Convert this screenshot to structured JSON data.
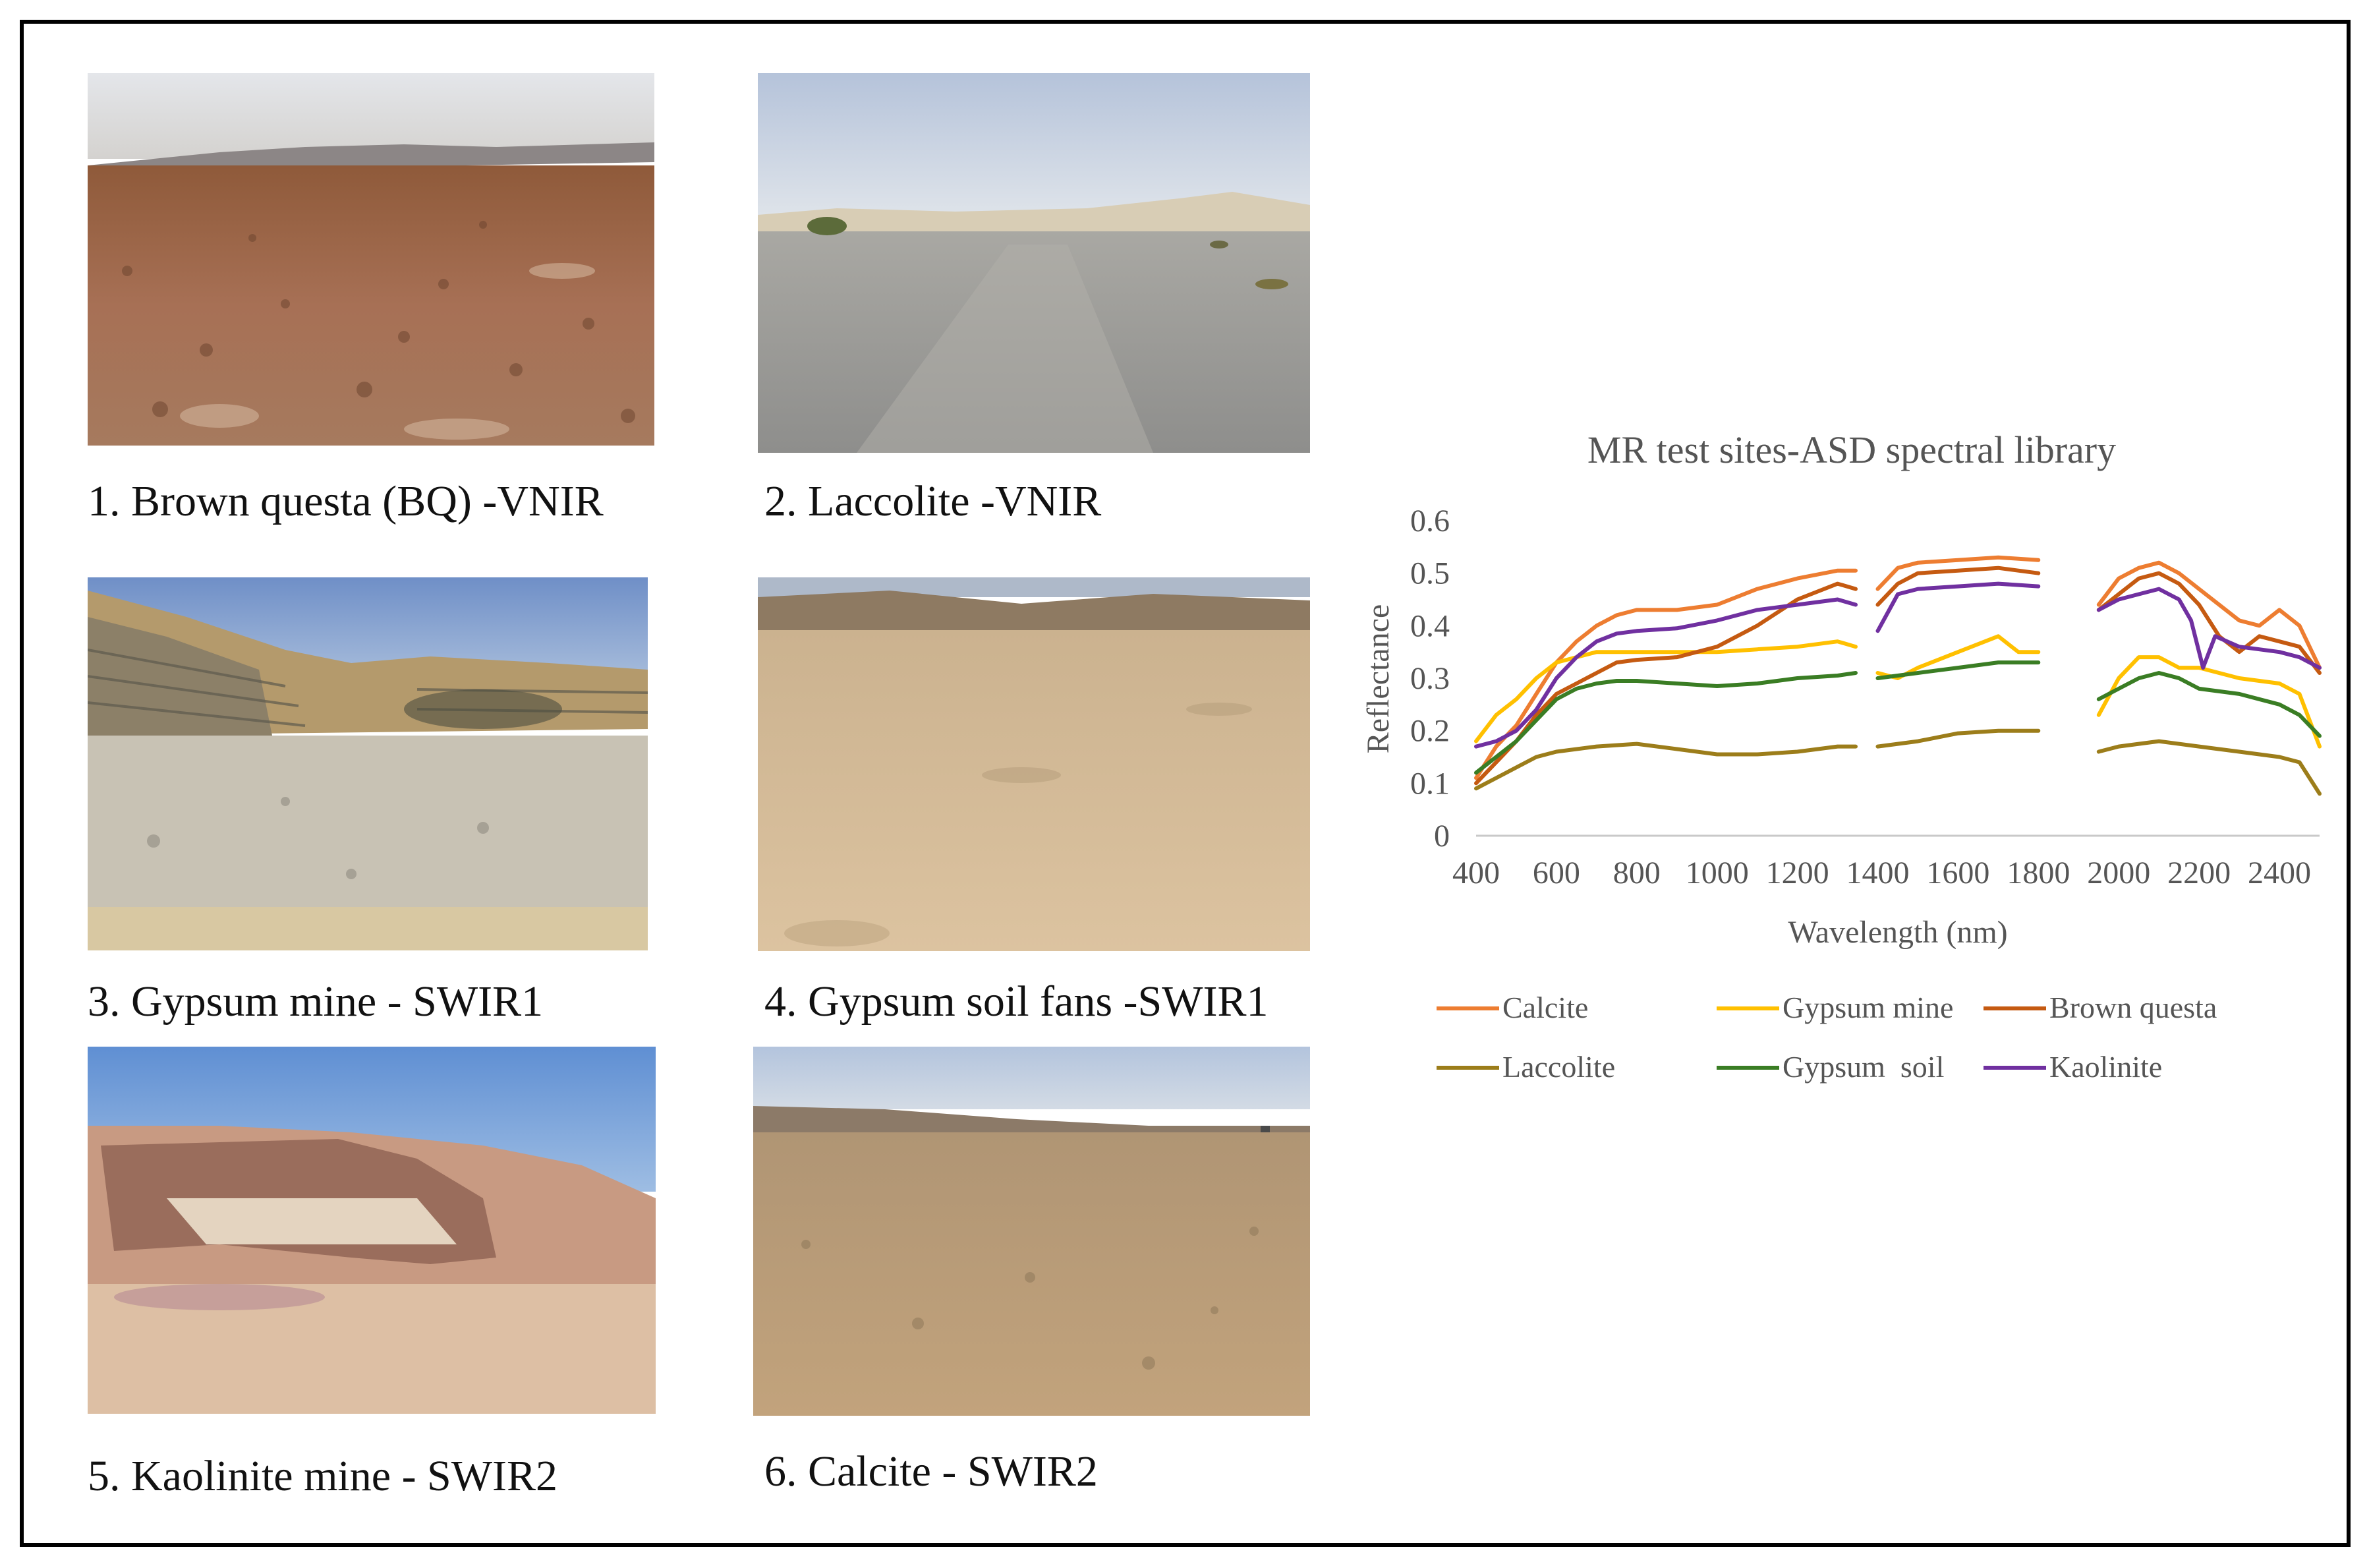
{
  "photos": [
    {
      "caption": "1. Brown questa (BQ) -VNIR"
    },
    {
      "caption": "2. Laccolite -VNIR"
    },
    {
      "caption": "3. Gypsum mine - SWIR1"
    },
    {
      "caption": "4. Gypsum soil fans -SWIR1"
    },
    {
      "caption": "5. Kaolinite mine - SWIR2"
    },
    {
      "caption": "6. Calcite - SWIR2"
    }
  ],
  "chart_data": {
    "type": "line",
    "title": "MR test sites-ASD spectral library",
    "xlabel": "Wavelength (nm)",
    "ylabel": "Reflectance",
    "xlim": [
      400,
      2500
    ],
    "ylim": [
      0,
      0.6
    ],
    "x_ticks": [
      "400",
      "600",
      "800",
      "1000",
      "1200",
      "1400",
      "1600",
      "1800",
      "2000",
      "2200",
      "2400"
    ],
    "y_ticks": [
      "0",
      "0.1",
      "0.2",
      "0.3",
      "0.4",
      "0.5",
      "0.6"
    ],
    "grid": false,
    "legend_position": "bottom",
    "gaps_nm": [
      [
        1350,
        1400
      ],
      [
        1810,
        1950
      ]
    ],
    "series": [
      {
        "name": "Calcite",
        "color": "#ED7D31",
        "points": [
          [
            400,
            0.11
          ],
          [
            450,
            0.17
          ],
          [
            500,
            0.21
          ],
          [
            550,
            0.27
          ],
          [
            600,
            0.33
          ],
          [
            650,
            0.37
          ],
          [
            700,
            0.4
          ],
          [
            750,
            0.42
          ],
          [
            800,
            0.43
          ],
          [
            900,
            0.43
          ],
          [
            1000,
            0.44
          ],
          [
            1100,
            0.47
          ],
          [
            1200,
            0.49
          ],
          [
            1300,
            0.505
          ],
          [
            1345,
            0.505
          ],
          [
            1400,
            0.47
          ],
          [
            1450,
            0.51
          ],
          [
            1500,
            0.52
          ],
          [
            1600,
            0.525
          ],
          [
            1700,
            0.53
          ],
          [
            1800,
            0.525
          ],
          [
            1950,
            0.44
          ],
          [
            2000,
            0.49
          ],
          [
            2050,
            0.51
          ],
          [
            2100,
            0.52
          ],
          [
            2150,
            0.5
          ],
          [
            2200,
            0.47
          ],
          [
            2250,
            0.44
          ],
          [
            2300,
            0.41
          ],
          [
            2350,
            0.4
          ],
          [
            2400,
            0.43
          ],
          [
            2450,
            0.4
          ],
          [
            2500,
            0.32
          ]
        ]
      },
      {
        "name": "Gypsum mine",
        "color": "#FFC000",
        "points": [
          [
            400,
            0.18
          ],
          [
            450,
            0.23
          ],
          [
            500,
            0.26
          ],
          [
            550,
            0.3
          ],
          [
            600,
            0.33
          ],
          [
            650,
            0.34
          ],
          [
            700,
            0.35
          ],
          [
            800,
            0.35
          ],
          [
            900,
            0.35
          ],
          [
            1000,
            0.35
          ],
          [
            1100,
            0.355
          ],
          [
            1200,
            0.36
          ],
          [
            1300,
            0.37
          ],
          [
            1345,
            0.36
          ],
          [
            1400,
            0.31
          ],
          [
            1450,
            0.3
          ],
          [
            1500,
            0.32
          ],
          [
            1600,
            0.35
          ],
          [
            1700,
            0.38
          ],
          [
            1750,
            0.35
          ],
          [
            1800,
            0.35
          ],
          [
            1950,
            0.23
          ],
          [
            2000,
            0.3
          ],
          [
            2050,
            0.34
          ],
          [
            2100,
            0.34
          ],
          [
            2150,
            0.32
          ],
          [
            2200,
            0.32
          ],
          [
            2300,
            0.3
          ],
          [
            2400,
            0.29
          ],
          [
            2450,
            0.27
          ],
          [
            2500,
            0.17
          ]
        ]
      },
      {
        "name": "Brown questa",
        "color": "#C55A11",
        "points": [
          [
            400,
            0.1
          ],
          [
            450,
            0.14
          ],
          [
            500,
            0.18
          ],
          [
            550,
            0.23
          ],
          [
            600,
            0.27
          ],
          [
            650,
            0.29
          ],
          [
            700,
            0.31
          ],
          [
            750,
            0.33
          ],
          [
            800,
            0.335
          ],
          [
            900,
            0.34
          ],
          [
            1000,
            0.36
          ],
          [
            1100,
            0.4
          ],
          [
            1200,
            0.45
          ],
          [
            1300,
            0.48
          ],
          [
            1345,
            0.47
          ],
          [
            1400,
            0.44
          ],
          [
            1450,
            0.48
          ],
          [
            1500,
            0.5
          ],
          [
            1600,
            0.505
          ],
          [
            1700,
            0.51
          ],
          [
            1800,
            0.5
          ],
          [
            1950,
            0.43
          ],
          [
            2000,
            0.46
          ],
          [
            2050,
            0.49
          ],
          [
            2100,
            0.5
          ],
          [
            2150,
            0.48
          ],
          [
            2200,
            0.44
          ],
          [
            2250,
            0.38
          ],
          [
            2300,
            0.35
          ],
          [
            2350,
            0.38
          ],
          [
            2400,
            0.37
          ],
          [
            2450,
            0.36
          ],
          [
            2500,
            0.31
          ]
        ]
      },
      {
        "name": "Laccolite",
        "color": "#9C7D1A",
        "points": [
          [
            400,
            0.09
          ],
          [
            450,
            0.11
          ],
          [
            500,
            0.13
          ],
          [
            550,
            0.15
          ],
          [
            600,
            0.16
          ],
          [
            700,
            0.17
          ],
          [
            800,
            0.175
          ],
          [
            900,
            0.165
          ],
          [
            1000,
            0.155
          ],
          [
            1100,
            0.155
          ],
          [
            1200,
            0.16
          ],
          [
            1300,
            0.17
          ],
          [
            1345,
            0.17
          ],
          [
            1400,
            0.17
          ],
          [
            1500,
            0.18
          ],
          [
            1600,
            0.195
          ],
          [
            1700,
            0.2
          ],
          [
            1800,
            0.2
          ],
          [
            1950,
            0.16
          ],
          [
            2000,
            0.17
          ],
          [
            2100,
            0.18
          ],
          [
            2200,
            0.17
          ],
          [
            2300,
            0.16
          ],
          [
            2400,
            0.15
          ],
          [
            2450,
            0.14
          ],
          [
            2500,
            0.08
          ]
        ]
      },
      {
        "name": "Gypsum  soil",
        "color": "#3A7D24",
        "points": [
          [
            400,
            0.12
          ],
          [
            450,
            0.15
          ],
          [
            500,
            0.18
          ],
          [
            550,
            0.22
          ],
          [
            600,
            0.26
          ],
          [
            650,
            0.28
          ],
          [
            700,
            0.29
          ],
          [
            750,
            0.295
          ],
          [
            800,
            0.295
          ],
          [
            900,
            0.29
          ],
          [
            1000,
            0.285
          ],
          [
            1100,
            0.29
          ],
          [
            1200,
            0.3
          ],
          [
            1300,
            0.305
          ],
          [
            1345,
            0.31
          ],
          [
            1400,
            0.3
          ],
          [
            1500,
            0.31
          ],
          [
            1600,
            0.32
          ],
          [
            1700,
            0.33
          ],
          [
            1800,
            0.33
          ],
          [
            1950,
            0.26
          ],
          [
            2000,
            0.28
          ],
          [
            2050,
            0.3
          ],
          [
            2100,
            0.31
          ],
          [
            2150,
            0.3
          ],
          [
            2200,
            0.28
          ],
          [
            2300,
            0.27
          ],
          [
            2400,
            0.25
          ],
          [
            2450,
            0.23
          ],
          [
            2500,
            0.19
          ]
        ]
      },
      {
        "name": "Kaolinite",
        "color": "#7030A0",
        "points": [
          [
            400,
            0.17
          ],
          [
            450,
            0.18
          ],
          [
            500,
            0.2
          ],
          [
            550,
            0.24
          ],
          [
            600,
            0.3
          ],
          [
            650,
            0.34
          ],
          [
            700,
            0.37
          ],
          [
            750,
            0.385
          ],
          [
            800,
            0.39
          ],
          [
            900,
            0.395
          ],
          [
            1000,
            0.41
          ],
          [
            1100,
            0.43
          ],
          [
            1200,
            0.44
          ],
          [
            1300,
            0.45
          ],
          [
            1345,
            0.44
          ],
          [
            1400,
            0.39
          ],
          [
            1450,
            0.46
          ],
          [
            1500,
            0.47
          ],
          [
            1600,
            0.475
          ],
          [
            1700,
            0.48
          ],
          [
            1800,
            0.475
          ],
          [
            1950,
            0.43
          ],
          [
            2000,
            0.45
          ],
          [
            2050,
            0.46
          ],
          [
            2100,
            0.47
          ],
          [
            2150,
            0.45
          ],
          [
            2180,
            0.41
          ],
          [
            2210,
            0.32
          ],
          [
            2240,
            0.38
          ],
          [
            2300,
            0.36
          ],
          [
            2400,
            0.35
          ],
          [
            2450,
            0.34
          ],
          [
            2500,
            0.32
          ]
        ]
      }
    ]
  }
}
